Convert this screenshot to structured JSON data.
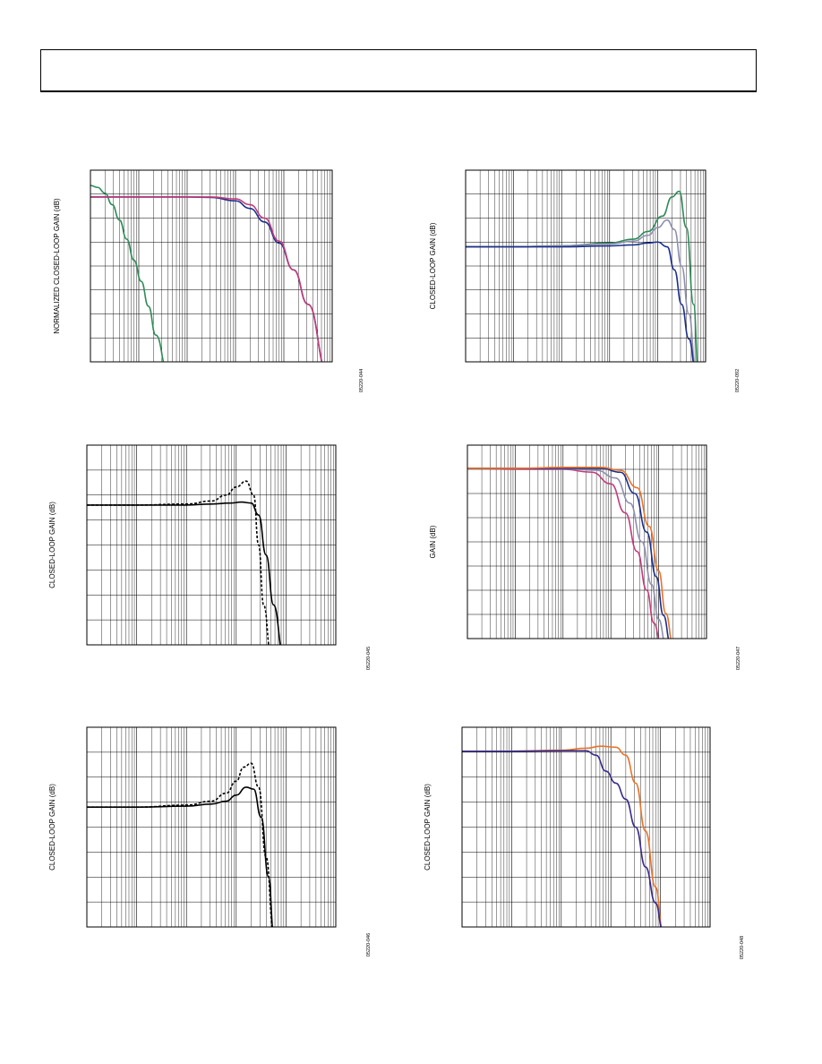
{
  "header": {},
  "chart_data": [
    {
      "type": "line",
      "ylabel": "NORMALIZED CLOSED-LOOP GAIN (dB)",
      "figure_code": "05220-044",
      "xscale": "log",
      "grid": true,
      "series": [
        {
          "color": "#2e8b57",
          "x": [
            0,
            0.15,
            0.3,
            0.45,
            0.6,
            0.75,
            0.9,
            1.05,
            1.2,
            1.35,
            1.6
          ],
          "y": [
            0.92,
            0.91,
            0.88,
            0.82,
            0.74,
            0.64,
            0.53,
            0.42,
            0.29,
            0.14,
            -0.05
          ]
        },
        {
          "color": "#1c2f8c",
          "x": [
            0,
            1,
            2,
            2.5,
            3,
            3.3,
            3.6,
            3.9,
            4.2,
            4.5,
            4.9
          ],
          "y": [
            0.86,
            0.86,
            0.86,
            0.858,
            0.84,
            0.8,
            0.73,
            0.62,
            0.48,
            0.3,
            -0.05
          ]
        },
        {
          "color": "#c23b7a",
          "x": [
            0,
            1,
            2,
            2.5,
            3,
            3.3,
            3.6,
            3.9,
            4.2,
            4.5,
            4.9
          ],
          "y": [
            0.86,
            0.86,
            0.86,
            0.86,
            0.85,
            0.82,
            0.75,
            0.63,
            0.48,
            0.3,
            -0.05
          ]
        }
      ]
    },
    {
      "type": "line",
      "ylabel": "CLOSED-LOOP GAIN (dB)",
      "figure_code": "05220-092",
      "xscale": "log",
      "grid": true,
      "series": [
        {
          "color": "#2e8b57",
          "x": [
            0,
            1,
            2,
            3,
            3.5,
            3.8,
            4.1,
            4.3,
            4.45,
            4.6,
            4.75,
            4.85
          ],
          "y": [
            0.6,
            0.6,
            0.605,
            0.62,
            0.64,
            0.68,
            0.76,
            0.86,
            0.89,
            0.7,
            0.3,
            -0.05
          ]
        },
        {
          "color": "#8f8fb0",
          "x": [
            0,
            1,
            2,
            3,
            3.5,
            3.8,
            4.0,
            4.2,
            4.35,
            4.5,
            4.65,
            4.8
          ],
          "y": [
            0.6,
            0.6,
            0.605,
            0.615,
            0.63,
            0.66,
            0.7,
            0.74,
            0.69,
            0.5,
            0.25,
            -0.05
          ]
        },
        {
          "color": "#1c2f8c",
          "x": [
            0,
            1,
            2,
            3,
            3.5,
            3.8,
            4.0,
            4.2,
            4.35,
            4.5,
            4.65,
            4.8
          ],
          "y": [
            0.6,
            0.6,
            0.6,
            0.605,
            0.61,
            0.62,
            0.625,
            0.6,
            0.48,
            0.3,
            0.12,
            -0.05
          ]
        }
      ]
    },
    {
      "type": "line",
      "ylabel": "CLOSED-LOOP GAIN (dB)",
      "figure_code": "05220-045",
      "xscale": "log",
      "grid": true,
      "series": [
        {
          "color": "#000000",
          "dashed": true,
          "x": [
            0,
            1,
            2,
            2.5,
            2.8,
            3.0,
            3.2,
            3.35,
            3.45,
            3.55,
            3.7
          ],
          "y": [
            0.7,
            0.7,
            0.705,
            0.72,
            0.75,
            0.79,
            0.82,
            0.75,
            0.5,
            0.2,
            -0.05
          ]
        },
        {
          "color": "#000000",
          "x": [
            0,
            1,
            2,
            2.5,
            2.9,
            3.1,
            3.3,
            3.45,
            3.6,
            3.75,
            3.95
          ],
          "y": [
            0.7,
            0.7,
            0.7,
            0.705,
            0.71,
            0.715,
            0.71,
            0.65,
            0.45,
            0.2,
            -0.05
          ]
        }
      ]
    },
    {
      "type": "line",
      "ylabel": "GAIN (dB)",
      "figure_code": "05220-047",
      "xscale": "log",
      "grid": true,
      "series": [
        {
          "color": "#c23b7a",
          "x": [
            0,
            1,
            2,
            2.6,
            3.0,
            3.3,
            3.55,
            3.75,
            3.9,
            4.05
          ],
          "y": [
            0.88,
            0.875,
            0.875,
            0.86,
            0.8,
            0.65,
            0.45,
            0.25,
            0.08,
            -0.03
          ]
        },
        {
          "color": "#8f8fb0",
          "x": [
            0,
            1,
            2,
            2.7,
            3.1,
            3.4,
            3.65,
            3.85,
            4.0,
            4.15
          ],
          "y": [
            0.88,
            0.88,
            0.878,
            0.87,
            0.83,
            0.7,
            0.5,
            0.28,
            0.1,
            -0.03
          ]
        },
        {
          "color": "#1c2f8c",
          "x": [
            0,
            1,
            2,
            2.8,
            3.2,
            3.5,
            3.75,
            3.95,
            4.1,
            4.25
          ],
          "y": [
            0.88,
            0.88,
            0.88,
            0.88,
            0.86,
            0.75,
            0.55,
            0.32,
            0.12,
            -0.03
          ]
        },
        {
          "color": "#e8742a",
          "x": [
            0,
            1,
            2,
            2.8,
            3.2,
            3.55,
            3.8,
            4.0,
            4.15,
            4.3
          ],
          "y": [
            0.88,
            0.88,
            0.885,
            0.885,
            0.87,
            0.78,
            0.58,
            0.35,
            0.13,
            -0.03
          ]
        }
      ]
    },
    {
      "type": "line",
      "ylabel": "CLOSED-LOOP GAIN (dB)",
      "figure_code": "05220-046",
      "xscale": "log",
      "grid": true,
      "series": [
        {
          "color": "#000000",
          "dashed": true,
          "x": [
            0,
            1,
            2,
            2.5,
            2.8,
            3.0,
            3.15,
            3.3,
            3.45,
            3.6,
            3.75
          ],
          "y": [
            0.6,
            0.6,
            0.61,
            0.63,
            0.67,
            0.73,
            0.8,
            0.82,
            0.7,
            0.35,
            -0.02
          ]
        },
        {
          "color": "#000000",
          "x": [
            0,
            1,
            2,
            2.5,
            2.8,
            3.0,
            3.2,
            3.35,
            3.5,
            3.65,
            3.75
          ],
          "y": [
            0.6,
            0.6,
            0.605,
            0.615,
            0.63,
            0.66,
            0.7,
            0.69,
            0.55,
            0.25,
            -0.02
          ]
        }
      ]
    },
    {
      "type": "line",
      "ylabel": "CLOSED-LOOP GAIN (dB)",
      "figure_code": "05220-048",
      "xscale": "log",
      "grid": true,
      "series": [
        {
          "color": "#e8742a",
          "x": [
            0,
            1,
            2,
            2.5,
            2.8,
            3.1,
            3.3,
            3.5,
            3.7,
            3.9,
            4.05
          ],
          "y": [
            0.88,
            0.88,
            0.885,
            0.895,
            0.905,
            0.9,
            0.86,
            0.72,
            0.48,
            0.2,
            -0.02
          ]
        },
        {
          "color": "#3a2a8a",
          "x": [
            0,
            1,
            2,
            2.5,
            2.7,
            2.9,
            3.1,
            3.3,
            3.5,
            3.7,
            3.9,
            4.05
          ],
          "y": [
            0.88,
            0.88,
            0.882,
            0.882,
            0.86,
            0.78,
            0.72,
            0.64,
            0.5,
            0.3,
            0.12,
            -0.02
          ]
        }
      ]
    }
  ]
}
